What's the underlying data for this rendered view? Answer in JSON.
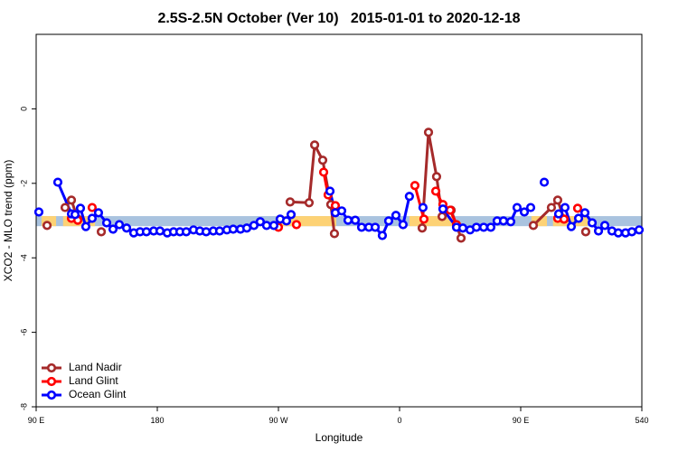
{
  "chart_data": {
    "type": "line",
    "title": "2.5S-2.5N October (Ver 10)   2015-01-01 to 2020-12-18",
    "x_label": "Longitude",
    "y_label": "XCO2 - MLO trend (ppm)",
    "xlim": [
      90,
      540
    ],
    "ylim": [
      -8,
      2
    ],
    "xticks": [
      {
        "value": 90,
        "label": "90 E"
      },
      180,
      {
        "value": 270,
        "label": "90 W"
      },
      {
        "value": 360,
        "label": "0"
      },
      {
        "value": 450,
        "label": "90 E"
      },
      540
    ],
    "yticks": [
      -8,
      -6,
      -4,
      -2,
      0
    ],
    "legend": "bottom-left",
    "band": {
      "range": [
        -3.15,
        -2.88
      ],
      "color": "#a9c3df",
      "land_color": "#fdd275",
      "land_ranges": [
        [
          94,
          104.8
        ],
        [
          110,
          133.7
        ],
        [
          268,
          313
        ],
        [
          367.3,
          400.9
        ],
        [
          458,
          469.5
        ],
        [
          474,
          499.7
        ]
      ]
    },
    "series": [
      {
        "name": "Land Nadir",
        "color": "#a52a2a",
        "x": [
          98.1,
          null,
          111.5,
          116.2,
          120.9,
          null,
          138.4,
          null,
          278.7,
          292.8,
          296.9,
          302.9,
          308.9,
          311.6,
          null,
          376.8,
          381.5,
          387.5,
          391.6,
          398.3,
          405.7,
          null,
          459.4,
          472.8,
          477.5,
          482.2,
          null,
          498.3
        ],
        "values": [
          -3.13,
          null,
          -2.65,
          -2.45,
          -2.96,
          null,
          -3.3,
          null,
          -2.5,
          -2.52,
          -0.97,
          -1.38,
          -2.57,
          -3.35,
          null,
          -3.2,
          -0.63,
          -1.82,
          -2.89,
          -2.72,
          -3.47,
          null,
          -3.13,
          -2.65,
          -2.45,
          -2.96,
          null,
          -3.3
        ]
      },
      {
        "name": "Land Glint",
        "color": "#ff0000",
        "x": [
          116.2,
          120.9,
          null,
          131.6,
          null,
          270,
          null,
          283.4,
          null,
          303.6,
          306.9,
          312.3,
          null,
          371.4,
          378.1,
          null,
          386.9,
          392.2,
          397.6,
          402.3,
          null,
          477.5,
          482.2,
          null,
          492.3
        ],
        "values": [
          -2.94,
          -2.99,
          null,
          -2.65,
          null,
          -3.18,
          null,
          -3.11,
          null,
          -1.7,
          -2.31,
          -2.6,
          null,
          -2.06,
          -2.96,
          null,
          -2.21,
          -2.57,
          -2.72,
          -3.11,
          null,
          -2.94,
          -2.96,
          null,
          -2.67
        ]
      },
      {
        "name": "Ocean Glint",
        "color": "#0000ff",
        "x": [
          92,
          null,
          106.1,
          116.2,
          118.9,
          122.9,
          126.9,
          131.6,
          136.3,
          142.4,
          147.1,
          151.8,
          157.2,
          162.5,
          167.2,
          171.9,
          177.3,
          182,
          187.4,
          192.1,
          196.8,
          201.5,
          206.9,
          211.6,
          216.3,
          221.6,
          226.3,
          231.7,
          236.4,
          241.8,
          246.5,
          251.8,
          256.5,
          261.2,
          266.6,
          271.3,
          276,
          279.4,
          null,
          308.3,
          312.3,
          317,
          321.7,
          327.1,
          331.8,
          337.2,
          341.9,
          347.2,
          351.9,
          357.3,
          362.6,
          367.3,
          null,
          377.4,
          null,
          392.2,
          402.3,
          407,
          412.4,
          417.1,
          422.5,
          427.8,
          432.5,
          437.2,
          442.6,
          447.3,
          452.7,
          457.4,
          null,
          467.5,
          null,
          478.2,
          482.9,
          487.6,
          493,
          497.7,
          503.1,
          507.8,
          512.5,
          517.8,
          522.5,
          527.9,
          532.6,
          538
        ],
        "values": [
          -2.77,
          null,
          -1.97,
          -2.82,
          -2.84,
          -2.67,
          -3.16,
          -2.94,
          -2.79,
          -3.06,
          -3.23,
          -3.11,
          -3.2,
          -3.33,
          -3.3,
          -3.3,
          -3.28,
          -3.28,
          -3.33,
          -3.3,
          -3.3,
          -3.3,
          -3.25,
          -3.28,
          -3.3,
          -3.28,
          -3.28,
          -3.25,
          -3.23,
          -3.23,
          -3.2,
          -3.13,
          -3.03,
          -3.13,
          -3.13,
          -2.96,
          -3.01,
          -2.84,
          null,
          -2.21,
          -2.79,
          -2.74,
          -2.99,
          -2.99,
          -3.18,
          -3.18,
          -3.18,
          -3.4,
          -3.01,
          -2.86,
          -3.11,
          -2.35,
          null,
          -2.65,
          null,
          -2.69,
          -3.18,
          -3.2,
          -3.25,
          -3.18,
          -3.18,
          -3.18,
          -3.01,
          -3.01,
          -3.03,
          -2.65,
          -2.77,
          -2.65,
          null,
          -1.97,
          null,
          -2.82,
          -2.65,
          -3.16,
          -2.94,
          -2.79,
          -3.06,
          -3.28,
          -3.13,
          -3.28,
          -3.33,
          -3.33,
          -3.3,
          -3.25
        ]
      }
    ]
  }
}
